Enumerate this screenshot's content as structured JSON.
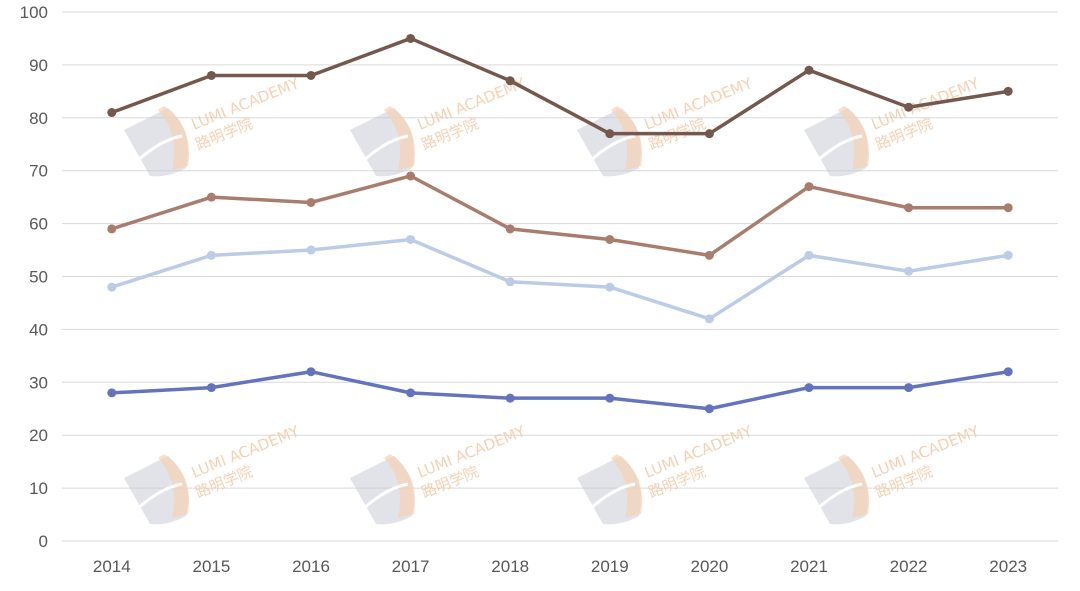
{
  "chart_data": {
    "type": "line",
    "categories": [
      "2014",
      "2015",
      "2016",
      "2017",
      "2018",
      "2019",
      "2020",
      "2021",
      "2022",
      "2023"
    ],
    "ylim": [
      0,
      100
    ],
    "yticks": [
      0,
      10,
      20,
      30,
      40,
      50,
      60,
      70,
      80,
      90,
      100
    ],
    "grid": true,
    "title": "",
    "xlabel": "",
    "ylabel": "",
    "series": [
      {
        "color": "#75584d",
        "values": [
          81,
          88,
          88,
          95,
          87,
          77,
          77,
          89,
          82,
          85
        ]
      },
      {
        "color": "#a97d6e",
        "values": [
          59,
          65,
          64,
          69,
          59,
          57,
          54,
          67,
          63,
          63
        ]
      },
      {
        "color": "#bccbe6",
        "values": [
          48,
          54,
          55,
          57,
          49,
          48,
          42,
          54,
          51,
          54
        ]
      },
      {
        "color": "#6374bd",
        "values": [
          28,
          29,
          32,
          28,
          27,
          27,
          25,
          29,
          29,
          32
        ]
      }
    ]
  },
  "watermark": {
    "text_en": "LUMI ACADEMY",
    "text_cn": "路明学院",
    "icon": "shield-logo-icon"
  }
}
